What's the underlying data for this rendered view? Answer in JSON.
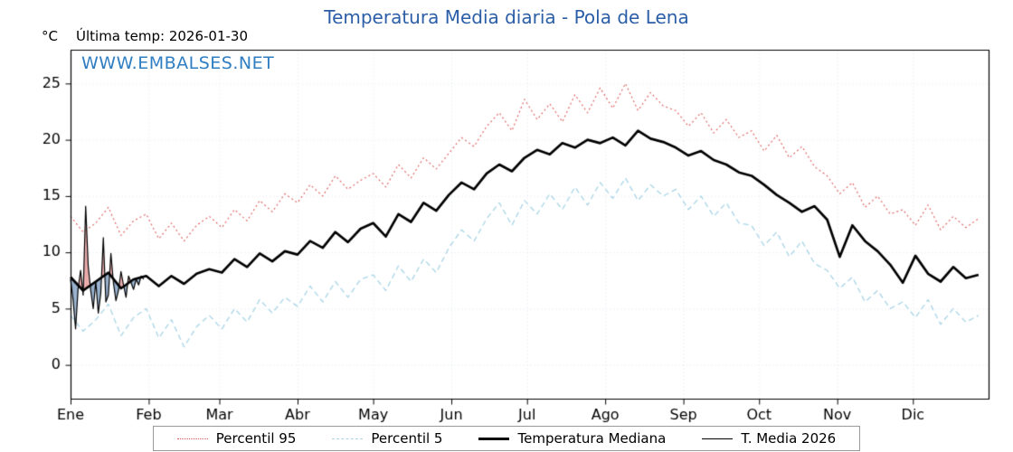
{
  "colors": {
    "title": "#2b5ea7",
    "watermark": "#2f7ec2",
    "axis": "#000000",
    "grid": "rgba(120,150,190,0.25)"
  },
  "chart_data": {
    "type": "line",
    "title": "Temperatura Media diaria - Pola de Lena",
    "unit_label": "°C",
    "subtitle": "Última temp: 2026-01-30",
    "watermark": "WWW.EMBALSES.NET",
    "xlabel": "",
    "ylabel": "°C",
    "ylim": [
      -3,
      28
    ],
    "yticks": [
      0,
      5,
      10,
      15,
      20,
      25
    ],
    "xticks": {
      "days": [
        1,
        32,
        60,
        91,
        121,
        152,
        182,
        213,
        244,
        274,
        305,
        335
      ],
      "labels": [
        "Ene",
        "Feb",
        "Mar",
        "Abr",
        "May",
        "Jun",
        "Jul",
        "Ago",
        "Sep",
        "Oct",
        "Nov",
        "Dic"
      ]
    },
    "legend_position": "bottom",
    "x_days": [
      1,
      6,
      11,
      16,
      21,
      26,
      31,
      36,
      41,
      46,
      51,
      56,
      61,
      66,
      71,
      76,
      81,
      86,
      91,
      96,
      101,
      106,
      111,
      116,
      121,
      126,
      131,
      136,
      141,
      146,
      151,
      156,
      161,
      166,
      171,
      176,
      181,
      186,
      191,
      196,
      201,
      206,
      211,
      216,
      221,
      226,
      231,
      236,
      241,
      246,
      251,
      256,
      261,
      266,
      271,
      276,
      281,
      286,
      291,
      296,
      301,
      306,
      311,
      316,
      321,
      326,
      331,
      336,
      341,
      346,
      351,
      356,
      361
    ],
    "series": [
      {
        "name": "Percentil 95",
        "color": "#de5a5a",
        "dash": [
          2,
          3
        ],
        "width": 1.1,
        "values": [
          13.2,
          11.8,
          12.6,
          14.0,
          11.5,
          12.8,
          13.4,
          11.2,
          12.6,
          11.0,
          12.4,
          13.2,
          12.2,
          13.8,
          12.8,
          14.6,
          13.6,
          15.2,
          14.4,
          16.0,
          15.0,
          16.8,
          15.6,
          16.4,
          17.0,
          15.8,
          17.8,
          16.6,
          18.4,
          17.4,
          18.8,
          20.2,
          19.4,
          21.2,
          22.4,
          20.8,
          23.6,
          21.8,
          23.2,
          21.6,
          24.0,
          22.4,
          24.6,
          22.8,
          25.0,
          22.6,
          24.2,
          23.0,
          22.6,
          21.2,
          22.4,
          20.6,
          21.8,
          20.2,
          20.8,
          19.0,
          20.4,
          18.4,
          19.4,
          17.6,
          16.8,
          15.2,
          16.2,
          14.0,
          15.0,
          13.4,
          13.8,
          12.4,
          14.2,
          12.0,
          13.2,
          12.2,
          13.0
        ]
      },
      {
        "name": "Percentil 5",
        "color": "#a8d4e6",
        "dash": [
          6,
          4
        ],
        "width": 1.3,
        "values": [
          4.4,
          3.0,
          4.0,
          5.4,
          2.6,
          4.2,
          5.0,
          2.4,
          4.0,
          1.6,
          3.4,
          4.4,
          3.2,
          5.0,
          3.8,
          5.8,
          4.6,
          6.0,
          5.2,
          7.0,
          5.6,
          7.4,
          6.0,
          7.6,
          8.0,
          6.6,
          8.8,
          7.4,
          9.4,
          8.2,
          10.4,
          12.0,
          11.0,
          13.0,
          14.4,
          12.4,
          14.6,
          13.4,
          15.2,
          13.8,
          15.8,
          14.2,
          16.2,
          14.8,
          16.6,
          14.6,
          16.0,
          15.0,
          15.6,
          13.8,
          15.0,
          13.2,
          14.4,
          12.6,
          12.4,
          10.6,
          11.8,
          9.6,
          11.0,
          9.0,
          8.4,
          6.8,
          7.8,
          5.6,
          6.6,
          5.0,
          5.6,
          4.2,
          5.8,
          3.6,
          5.0,
          3.8,
          4.4
        ]
      },
      {
        "name": "Temperatura Mediana",
        "color": "#000000",
        "dash": [],
        "width": 2.7,
        "values": [
          7.8,
          6.6,
          7.4,
          8.2,
          6.8,
          7.6,
          7.9,
          7.0,
          7.9,
          7.2,
          8.1,
          8.5,
          8.2,
          9.4,
          8.7,
          9.9,
          9.2,
          10.1,
          9.8,
          11.0,
          10.4,
          11.8,
          10.9,
          12.1,
          12.6,
          11.4,
          13.4,
          12.7,
          14.4,
          13.7,
          15.1,
          16.2,
          15.6,
          17.0,
          17.8,
          17.2,
          18.4,
          19.1,
          18.7,
          19.7,
          19.3,
          20.0,
          19.7,
          20.2,
          19.5,
          20.8,
          20.1,
          19.8,
          19.3,
          18.6,
          19.0,
          18.2,
          17.8,
          17.1,
          16.8,
          16.0,
          15.1,
          14.4,
          13.6,
          14.1,
          12.9,
          9.6,
          12.4,
          11.0,
          10.1,
          8.9,
          7.3,
          9.7,
          8.1,
          7.4,
          8.7,
          7.7,
          8.0
        ]
      },
      {
        "name": "T. Media 2026",
        "color": "#000000",
        "dash": [],
        "width": 1.2,
        "x": [
          1,
          2,
          3,
          4,
          5,
          6,
          7,
          8,
          9,
          10,
          11,
          12,
          13,
          14,
          15,
          16,
          17,
          18,
          19,
          20,
          21,
          22,
          23,
          24,
          25,
          26,
          27,
          28,
          29,
          30
        ],
        "values": [
          7.6,
          5.8,
          3.2,
          6.8,
          8.4,
          6.2,
          14.1,
          8.8,
          6.6,
          5.0,
          7.4,
          4.6,
          6.4,
          11.3,
          5.6,
          6.2,
          9.9,
          7.3,
          5.7,
          6.6,
          8.3,
          7.1,
          6.0,
          7.9,
          7.3,
          6.7,
          7.6,
          7.1,
          7.9,
          7.6
        ],
        "fill_against": "Temperatura Mediana",
        "fill_above_color": "rgba(224,125,125,0.65)",
        "fill_below_color": "rgba(92,132,176,0.65)"
      }
    ]
  }
}
